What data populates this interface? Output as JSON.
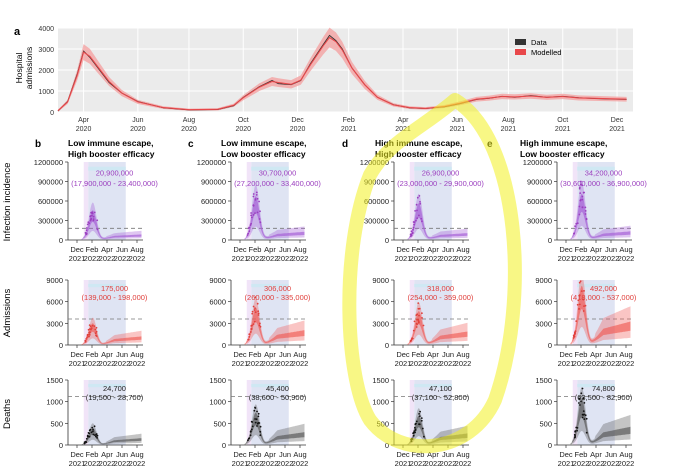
{
  "panel_a": {
    "label": "a",
    "ylabel": "Hospital admissions",
    "legend": {
      "data": "Data",
      "modelled": "Modelled"
    },
    "chart_data": {
      "type": "line",
      "ylim": [
        0,
        4000
      ],
      "yticks": [
        "0",
        "1000",
        "2000",
        "3000",
        "4000"
      ],
      "xticks": [
        {
          "m": "Apr",
          "y": "2020",
          "t": 2020.25
        },
        {
          "m": "Jun",
          "y": "2020",
          "t": 2020.42
        },
        {
          "m": "Aug",
          "y": "2020",
          "t": 2020.58
        },
        {
          "m": "Oct",
          "y": "2020",
          "t": 2020.75
        },
        {
          "m": "Dec",
          "y": "2020",
          "t": 2020.92
        },
        {
          "m": "Feb",
          "y": "2021",
          "t": 2021.08
        },
        {
          "m": "Apr",
          "y": "2021",
          "t": 2021.25
        },
        {
          "m": "Jun",
          "y": "2021",
          "t": 2021.42
        },
        {
          "m": "Aug",
          "y": "2021",
          "t": 2021.58
        },
        {
          "m": "Oct",
          "y": "2021",
          "t": 2021.75
        },
        {
          "m": "Dec",
          "y": "2021",
          "t": 2021.92
        }
      ],
      "xlim": [
        2020.17,
        2021.97
      ],
      "series": [
        {
          "name": "Data",
          "color": "#333333",
          "x": [
            2020.17,
            2020.2,
            2020.23,
            2020.25,
            2020.27,
            2020.3,
            2020.33,
            2020.37,
            2020.42,
            2020.5,
            2020.58,
            2020.67,
            2020.72,
            2020.75,
            2020.8,
            2020.84,
            2020.86,
            2020.9,
            2020.93,
            2020.96,
            2021.0,
            2021.02,
            2021.04,
            2021.06,
            2021.09,
            2021.13,
            2021.17,
            2021.22,
            2021.27,
            2021.32,
            2021.38,
            2021.43,
            2021.48,
            2021.52,
            2021.56,
            2021.6,
            2021.65,
            2021.7,
            2021.75,
            2021.8,
            2021.85,
            2021.9,
            2021.95
          ],
          "y": [
            50,
            500,
            1800,
            2900,
            2600,
            2000,
            1400,
            900,
            500,
            200,
            100,
            120,
            300,
            700,
            1200,
            1500,
            1350,
            1300,
            1500,
            2300,
            3200,
            3650,
            3400,
            3000,
            2100,
            1300,
            700,
            350,
            200,
            160,
            250,
            400,
            600,
            650,
            750,
            700,
            780,
            700,
            750,
            680,
            640,
            620,
            600
          ]
        },
        {
          "name": "Modelled",
          "color": "#e8474a",
          "x": [
            2020.17,
            2020.2,
            2020.23,
            2020.25,
            2020.27,
            2020.3,
            2020.33,
            2020.37,
            2020.42,
            2020.5,
            2020.58,
            2020.67,
            2020.72,
            2020.75,
            2020.8,
            2020.84,
            2020.86,
            2020.9,
            2020.93,
            2020.96,
            2021.0,
            2021.02,
            2021.04,
            2021.06,
            2021.09,
            2021.13,
            2021.17,
            2021.22,
            2021.27,
            2021.32,
            2021.38,
            2021.43,
            2021.48,
            2021.52,
            2021.56,
            2021.6,
            2021.65,
            2021.7,
            2021.75,
            2021.8,
            2021.85,
            2021.9,
            2021.95
          ],
          "y": [
            60,
            480,
            1750,
            2850,
            2650,
            2050,
            1450,
            900,
            480,
            210,
            110,
            130,
            320,
            680,
            1180,
            1450,
            1400,
            1320,
            1520,
            2250,
            3150,
            3550,
            3350,
            2950,
            2100,
            1300,
            700,
            340,
            210,
            170,
            260,
            420,
            610,
            660,
            740,
            720,
            760,
            700,
            740,
            670,
            650,
            630,
            610
          ]
        }
      ]
    }
  },
  "row_labels": [
    "Infection incidence",
    "Admissions",
    "Deaths"
  ],
  "columns": [
    {
      "letter": "b",
      "title1": "Low immune escape,",
      "title2": "High booster efficacy"
    },
    {
      "letter": "c",
      "title1": "Low immune escape,",
      "title2": "Low booster efficacy"
    },
    {
      "letter": "d",
      "title1": "High immune escape,",
      "title2": "High booster efficacy"
    },
    {
      "letter": "e",
      "title1": "High immune escape,",
      "title2": "Low booster efficacy"
    }
  ],
  "small_xticks": [
    {
      "m": "Dec",
      "y": "2021"
    },
    {
      "m": "Feb",
      "y": "2022"
    },
    {
      "m": "Apr",
      "y": "2022"
    },
    {
      "m": "Jun",
      "y": "2022"
    },
    {
      "m": "Aug",
      "y": "2022"
    }
  ],
  "rows": [
    {
      "key": "infections",
      "color": "#a35bd6",
      "text_color": "#9b3fbf",
      "ylim": [
        0,
        1200000
      ],
      "yticks": [
        "0",
        "300000",
        "600000",
        "900000",
        "1200000"
      ],
      "threshold": 180000,
      "panels": [
        {
          "total": "20,900,000",
          "ci": "(17,900,000 - 23,400,000)",
          "peak": 380000
        },
        {
          "total": "30,700,000",
          "ci": "(27,200,000 - 33,400,000)",
          "peak": 560000
        },
        {
          "total": "26,900,000",
          "ci": "(23,000,000 - 29,900,000)",
          "peak": 470000
        },
        {
          "total": "34,200,000",
          "ci": "(30,600,000 - 36,900,000)",
          "peak": 590000
        }
      ]
    },
    {
      "key": "admissions",
      "color": "#f05a55",
      "text_color": "#e0403c",
      "ylim": [
        0,
        9000
      ],
      "yticks": [
        "0",
        "3000",
        "6000",
        "9000"
      ],
      "threshold": 3600,
      "panels": [
        {
          "total": "175,000",
          "ci": "(139,000 - 198,000)",
          "peak": 2500
        },
        {
          "total": "306,000",
          "ci": "(260,000 - 335,000)",
          "peak": 4300
        },
        {
          "total": "318,000",
          "ci": "(254,000 - 359,000)",
          "peak": 3900
        },
        {
          "total": "492,000",
          "ci": "(418,000 - 537,000)",
          "peak": 6800
        }
      ]
    },
    {
      "key": "deaths",
      "color": "#555555",
      "text_color": "#222222",
      "ylim": [
        0,
        1500
      ],
      "yticks": [
        "0",
        "500",
        "1000",
        "1500"
      ],
      "threshold": 1120,
      "panels": [
        {
          "total": "24,700",
          "ci": "(19,500 - 28,700)",
          "peak": 330
        },
        {
          "total": "45,400",
          "ci": "(38,600 - 50,900)",
          "peak": 620
        },
        {
          "total": "47,100",
          "ci": "(37,100 - 52,800)",
          "peak": 560
        },
        {
          "total": "74,800",
          "ci": "(63,500 - 82,900)",
          "peak": 880
        }
      ]
    }
  ],
  "highlight": {
    "color": "#f2f020",
    "shape": "ellipse-annotation"
  }
}
